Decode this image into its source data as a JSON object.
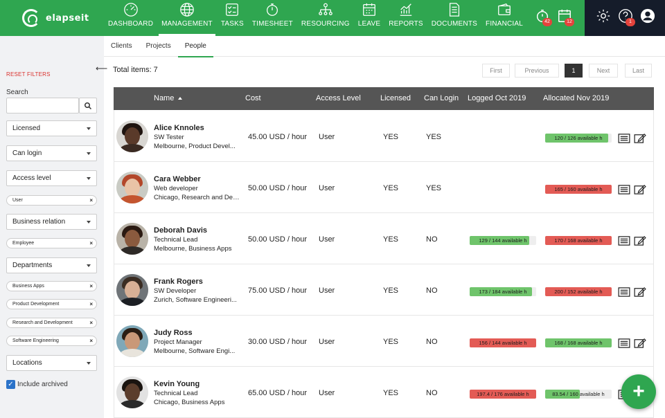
{
  "app": {
    "logo_text": "elapseit"
  },
  "nav": {
    "items": [
      {
        "label": "DASHBOARD",
        "icon": "dashboard-icon"
      },
      {
        "label": "MANAGEMENT",
        "icon": "globe-icon",
        "active": true
      },
      {
        "label": "TASKS",
        "icon": "tasks-icon"
      },
      {
        "label": "TIMESHEET",
        "icon": "stopwatch-icon"
      },
      {
        "label": "RESOURCING",
        "icon": "resourcing-icon"
      },
      {
        "label": "LEAVE",
        "icon": "calendar-icon"
      },
      {
        "label": "REPORTS",
        "icon": "chart-icon"
      },
      {
        "label": "DOCUMENTS",
        "icon": "document-icon"
      },
      {
        "label": "FINANCIAL",
        "icon": "wallet-icon"
      }
    ],
    "timer_badge": "42",
    "calendar_badge": "12",
    "help_badge": "1"
  },
  "subnav": {
    "tabs": [
      "Clients",
      "Projects",
      "People"
    ],
    "active": "People"
  },
  "sidebar": {
    "reset_label": "RESET FILTERS",
    "search_label": "Search",
    "search_value": "",
    "filters": {
      "licensed": "Licensed",
      "can_login": "Can login",
      "access_level": "Access level",
      "access_chip": "User",
      "business_relation": "Business relation",
      "business_chip": "Employee",
      "departments": "Departments",
      "dept_chips": [
        "Business Apps",
        "Product Development",
        "Research and Development",
        "Software Engineering"
      ],
      "locations": "Locations"
    },
    "include_archived": "Include archived"
  },
  "main": {
    "total_label": "Total items: 7",
    "pagination": {
      "first": "First",
      "previous": "Previous",
      "current": "1",
      "next": "Next",
      "last": "Last"
    },
    "columns": {
      "name": "Name",
      "cost": "Cost",
      "access": "Access Level",
      "licensed": "Licensed",
      "can_login": "Can Login",
      "logged": "Logged Oct 2019",
      "allocated": "Allocated Nov 2019"
    },
    "rows": [
      {
        "name": "Alice Knnoles",
        "role": "SW Tester",
        "location": "Melbourne, Product Devel...",
        "cost": "45.00 USD / hour",
        "access": "User",
        "licensed": "YES",
        "can_login": "YES",
        "logged": "",
        "allocated": "120 / 126 available h",
        "alloc_frac": 0.95,
        "alloc_color": "#6fc46b"
      },
      {
        "name": "Cara Webber",
        "role": "Web developer",
        "location": "Chicago, Research and Dev...",
        "cost": "50.00 USD / hour",
        "access": "User",
        "licensed": "YES",
        "can_login": "YES",
        "logged": "",
        "allocated": "165 / 160 available h",
        "alloc_frac": 1.0,
        "alloc_color": "#e35b55"
      },
      {
        "name": "Deborah Davis",
        "role": "Technical Lead",
        "location": "Melbourne, Business Apps",
        "cost": "50.00 USD / hour",
        "access": "User",
        "licensed": "YES",
        "can_login": "NO",
        "logged": "129 / 144 available h",
        "logged_frac": 0.9,
        "logged_color": "#6fc46b",
        "allocated": "170 / 168 available h",
        "alloc_frac": 1.0,
        "alloc_color": "#e35b55"
      },
      {
        "name": "Frank Rogers",
        "role": "SW Developer",
        "location": "Zurich, Software Engineeri...",
        "cost": "75.00 USD / hour",
        "access": "User",
        "licensed": "YES",
        "can_login": "NO",
        "logged": "173 / 184 available h",
        "logged_frac": 0.94,
        "logged_color": "#6fc46b",
        "allocated": "200 / 152 available h",
        "alloc_frac": 1.0,
        "alloc_color": "#e35b55"
      },
      {
        "name": "Judy Ross",
        "role": "Project Manager",
        "location": "Melbourne, Software Engi...",
        "cost": "30.00 USD / hour",
        "access": "User",
        "licensed": "YES",
        "can_login": "NO",
        "logged": "156 / 144 available h",
        "logged_frac": 1.0,
        "logged_color": "#e35b55",
        "allocated": "168 / 168 available h",
        "alloc_frac": 1.0,
        "alloc_color": "#6fc46b"
      },
      {
        "name": "Kevin Young",
        "role": "Technical Lead",
        "location": "Chicago, Business Apps",
        "cost": "65.00 USD / hour",
        "access": "User",
        "licensed": "YES",
        "can_login": "NO",
        "logged": "197.4 / 176 available h",
        "logged_frac": 1.0,
        "logged_color": "#e35b55",
        "allocated": "83.54 / 160 available h",
        "alloc_frac": 0.52,
        "alloc_color": "#6fc46b"
      }
    ]
  },
  "fab_label": "+"
}
